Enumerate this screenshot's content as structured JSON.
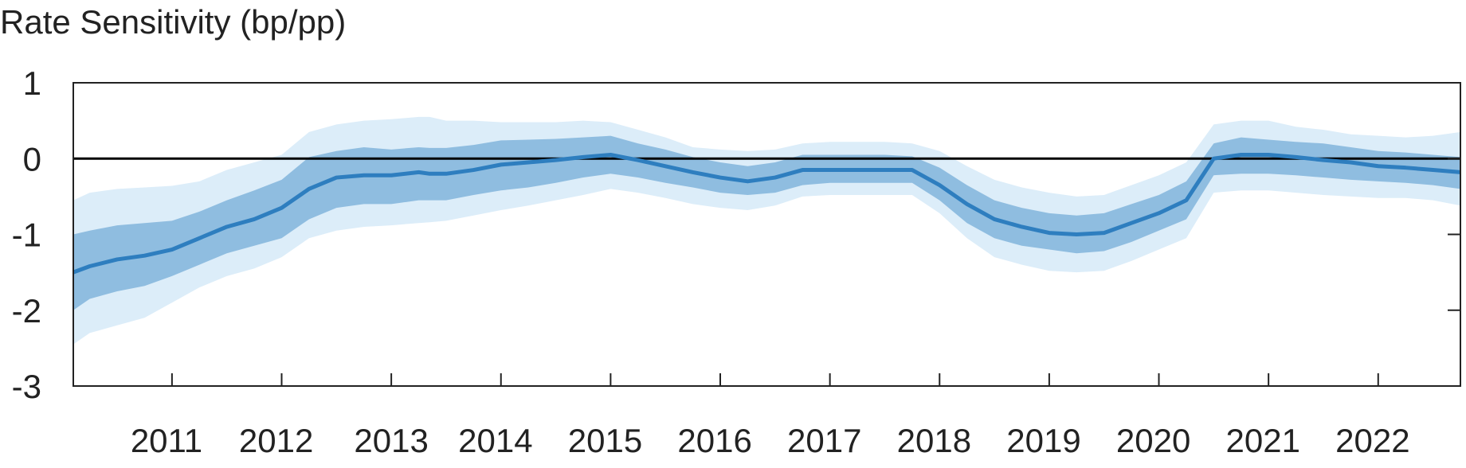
{
  "chart_data": {
    "type": "line",
    "title": "Rate Sensitivity (bp/pp)",
    "xlabel": "",
    "ylabel": "",
    "xlim": [
      2010.1,
      2022.75
    ],
    "ylim": [
      -3,
      1
    ],
    "yticks": [
      "1",
      "0",
      "-1",
      "-2",
      "-3"
    ],
    "ytick_values": [
      1,
      0,
      -1,
      -2,
      -3
    ],
    "xticks": [
      "2011",
      "2012",
      "2013",
      "2014",
      "2015",
      "2016",
      "2017",
      "2018",
      "2019",
      "2020",
      "2021",
      "2022"
    ],
    "xtick_positions": [
      2011,
      2012,
      2013,
      2014,
      2015,
      2016,
      2017,
      2018,
      2019,
      2020,
      2021,
      2022
    ],
    "x_label_positions": [
      2010.95,
      2011.95,
      2013.0,
      2013.95,
      2014.95,
      2015.95,
      2016.95,
      2017.95,
      2018.95,
      2019.95,
      2020.95,
      2021.95
    ],
    "reference_line": 0,
    "grid": false,
    "colors": {
      "line": "#2e7ebf",
      "inner_band": "#8fbde0",
      "outer_band": "#dcedf9",
      "zero_line": "#000000",
      "axis": "#222222"
    },
    "series": [
      {
        "x": [
          2010.1,
          2010.25,
          2010.5,
          2010.75,
          2011.0,
          2011.25,
          2011.5,
          2011.75,
          2012.0,
          2012.25,
          2012.5,
          2012.75,
          2013.0,
          2013.25,
          2013.35,
          2013.5,
          2013.75,
          2014.0,
          2014.25,
          2014.5,
          2014.75,
          2015.0,
          2015.25,
          2015.5,
          2015.75,
          2016.0,
          2016.25,
          2016.5,
          2016.75,
          2017.0,
          2017.25,
          2017.5,
          2017.75,
          2018.0,
          2018.25,
          2018.5,
          2018.75,
          2019.0,
          2019.25,
          2019.5,
          2019.75,
          2020.0,
          2020.25,
          2020.5,
          2020.75,
          2021.0,
          2021.25,
          2021.5,
          2021.75,
          2022.0,
          2022.25,
          2022.5,
          2022.75
        ],
        "values": [
          -1.5,
          -1.42,
          -1.33,
          -1.28,
          -1.2,
          -1.05,
          -0.9,
          -0.8,
          -0.65,
          -0.4,
          -0.25,
          -0.22,
          -0.22,
          -0.18,
          -0.2,
          -0.2,
          -0.15,
          -0.08,
          -0.05,
          -0.02,
          0.02,
          0.05,
          -0.02,
          -0.1,
          -0.18,
          -0.25,
          -0.3,
          -0.25,
          -0.15,
          -0.15,
          -0.15,
          -0.15,
          -0.15,
          -0.35,
          -0.6,
          -0.8,
          -0.9,
          -0.98,
          -1.0,
          -0.98,
          -0.85,
          -0.72,
          -0.55,
          0.0,
          0.05,
          0.05,
          0.02,
          -0.02,
          -0.05,
          -0.1,
          -0.12,
          -0.15,
          -0.18
        ],
        "ci_inner_lower": [
          -2.0,
          -1.85,
          -1.75,
          -1.68,
          -1.55,
          -1.4,
          -1.25,
          -1.15,
          -1.05,
          -0.8,
          -0.65,
          -0.6,
          -0.6,
          -0.55,
          -0.55,
          -0.55,
          -0.48,
          -0.42,
          -0.38,
          -0.32,
          -0.25,
          -0.2,
          -0.25,
          -0.32,
          -0.38,
          -0.45,
          -0.48,
          -0.45,
          -0.35,
          -0.32,
          -0.32,
          -0.32,
          -0.32,
          -0.55,
          -0.85,
          -1.05,
          -1.15,
          -1.2,
          -1.25,
          -1.22,
          -1.1,
          -0.95,
          -0.8,
          -0.22,
          -0.2,
          -0.2,
          -0.22,
          -0.25,
          -0.28,
          -0.3,
          -0.32,
          -0.35,
          -0.4
        ],
        "ci_inner_upper": [
          -1.0,
          -0.95,
          -0.88,
          -0.85,
          -0.82,
          -0.7,
          -0.55,
          -0.42,
          -0.28,
          0.02,
          0.1,
          0.15,
          0.12,
          0.15,
          0.14,
          0.14,
          0.18,
          0.24,
          0.25,
          0.26,
          0.28,
          0.3,
          0.2,
          0.12,
          0.02,
          -0.05,
          -0.1,
          -0.05,
          0.05,
          0.05,
          0.05,
          0.05,
          0.03,
          -0.12,
          -0.35,
          -0.55,
          -0.65,
          -0.72,
          -0.75,
          -0.72,
          -0.6,
          -0.48,
          -0.3,
          0.2,
          0.28,
          0.25,
          0.22,
          0.2,
          0.15,
          0.1,
          0.08,
          0.05,
          0.02
        ],
        "ci_outer_lower": [
          -2.45,
          -2.3,
          -2.2,
          -2.1,
          -1.9,
          -1.7,
          -1.55,
          -1.45,
          -1.3,
          -1.05,
          -0.95,
          -0.9,
          -0.88,
          -0.85,
          -0.84,
          -0.82,
          -0.75,
          -0.68,
          -0.62,
          -0.55,
          -0.48,
          -0.4,
          -0.45,
          -0.52,
          -0.6,
          -0.65,
          -0.68,
          -0.62,
          -0.5,
          -0.48,
          -0.48,
          -0.48,
          -0.48,
          -0.72,
          -1.05,
          -1.3,
          -1.4,
          -1.48,
          -1.5,
          -1.48,
          -1.35,
          -1.2,
          -1.05,
          -0.45,
          -0.42,
          -0.42,
          -0.45,
          -0.48,
          -0.5,
          -0.52,
          -0.52,
          -0.55,
          -0.62
        ],
        "ci_outer_upper": [
          -0.55,
          -0.45,
          -0.4,
          -0.38,
          -0.36,
          -0.3,
          -0.15,
          -0.05,
          0.05,
          0.35,
          0.45,
          0.5,
          0.52,
          0.55,
          0.55,
          0.5,
          0.5,
          0.48,
          0.48,
          0.48,
          0.5,
          0.48,
          0.38,
          0.28,
          0.15,
          0.12,
          0.1,
          0.12,
          0.2,
          0.22,
          0.22,
          0.22,
          0.2,
          0.1,
          -0.1,
          -0.28,
          -0.38,
          -0.45,
          -0.5,
          -0.48,
          -0.35,
          -0.22,
          -0.05,
          0.45,
          0.5,
          0.5,
          0.42,
          0.38,
          0.32,
          0.3,
          0.28,
          0.3,
          0.35
        ]
      }
    ]
  }
}
